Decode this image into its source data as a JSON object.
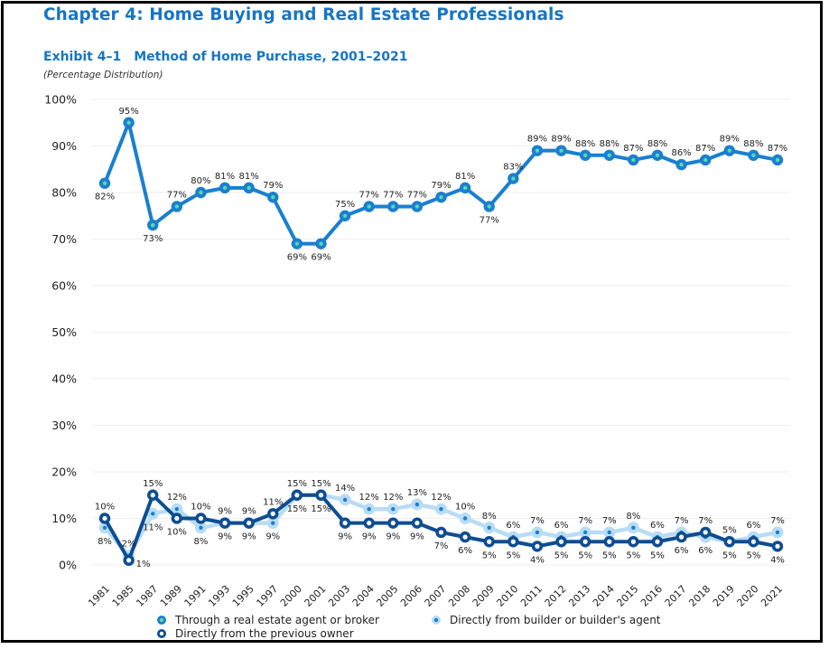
{
  "header": {
    "chapter_title": "Chapter 4:  Home Buying and Real Estate Professionals",
    "exhibit_number": "Exhibit 4–1",
    "exhibit_title": "Method of Home Purchase, 2001–2021",
    "subtitle": "(Percentage Distribution)"
  },
  "colors": {
    "title": "#1775c4",
    "agent_line": "#1a7fd0",
    "agent_marker_center": "#5fd6a8",
    "builder_line": "#b8dcf5",
    "builder_marker_center": "#1a7fd0",
    "owner_line": "#0d4d92",
    "owner_marker_center": "#ffffff",
    "gridline": "#eeeeee"
  },
  "chart_data": {
    "type": "line",
    "title": "Method of Home Purchase, 2001–2021",
    "subtitle": "(Percentage Distribution)",
    "xlabel": "",
    "ylabel": "",
    "ylim": [
      0,
      100
    ],
    "yticks": [
      "0%",
      "10%",
      "20%",
      "30%",
      "40%",
      "50%",
      "60%",
      "70%",
      "80%",
      "90%",
      "100%"
    ],
    "ytick_values": [
      0,
      10,
      20,
      30,
      40,
      50,
      60,
      70,
      80,
      90,
      100
    ],
    "grid": true,
    "legend_position": "bottom",
    "categories": [
      "1981",
      "1985",
      "1987",
      "1989",
      "1991",
      "1993",
      "1995",
      "1997",
      "2000",
      "2001",
      "2003",
      "2004",
      "2005",
      "2006",
      "2007",
      "2008",
      "2009",
      "2010",
      "2011",
      "2012",
      "2013",
      "2014",
      "2015",
      "2016",
      "2017",
      "2018",
      "2019",
      "2020",
      "2021"
    ],
    "series": [
      {
        "name": "Through a real estate agent or broker",
        "key": "agent",
        "values": [
          82,
          95,
          73,
          77,
          80,
          81,
          81,
          79,
          69,
          69,
          75,
          77,
          77,
          77,
          79,
          81,
          77,
          83,
          89,
          89,
          88,
          88,
          87,
          88,
          86,
          87,
          89,
          88,
          87
        ],
        "label_pos": [
          "below",
          "above",
          "below",
          "above",
          "above",
          "above",
          "above",
          "above",
          "below",
          "below",
          "above",
          "above",
          "above",
          "above",
          "above",
          "above",
          "below",
          "above",
          "above",
          "above",
          "above",
          "above",
          "above",
          "above",
          "above",
          "above",
          "above",
          "above",
          "above"
        ]
      },
      {
        "name": "Directly from builder or builder's agent",
        "key": "builder",
        "values": [
          8,
          2,
          11,
          12,
          8,
          9,
          9,
          9,
          15,
          15,
          14,
          12,
          12,
          13,
          12,
          10,
          8,
          6,
          7,
          6,
          7,
          7,
          8,
          6,
          7,
          6,
          5,
          6,
          7
        ],
        "label_pos": [
          "below",
          "above",
          "below",
          "above",
          "below",
          "below",
          "below",
          "below",
          "below",
          "below",
          "above",
          "above",
          "above",
          "above",
          "above",
          "above",
          "above",
          "above",
          "above",
          "above",
          "above",
          "above",
          "above",
          "above",
          "above",
          "below",
          "above",
          "above",
          "above"
        ]
      },
      {
        "name": "Directly from the previous owner",
        "key": "owner",
        "values": [
          10,
          1,
          15,
          10,
          10,
          9,
          9,
          11,
          15,
          15,
          9,
          9,
          9,
          9,
          7,
          6,
          5,
          5,
          4,
          5,
          5,
          5,
          5,
          5,
          6,
          7,
          5,
          5,
          4
        ],
        "label_pos": [
          "above",
          "right",
          "above",
          "below",
          "above",
          "above",
          "above",
          "above",
          "above",
          "above",
          "below",
          "below",
          "below",
          "below",
          "below",
          "below",
          "below",
          "below",
          "below",
          "below",
          "below",
          "below",
          "below",
          "below",
          "below",
          "above",
          "below",
          "below",
          "below"
        ]
      }
    ]
  },
  "legend": {
    "items": [
      {
        "label": "Through a real estate agent or broker",
        "marker": "agent"
      },
      {
        "label": "Directly from builder or builder's agent",
        "marker": "builder"
      },
      {
        "label": "Directly from the previous owner",
        "marker": "owner"
      }
    ]
  }
}
